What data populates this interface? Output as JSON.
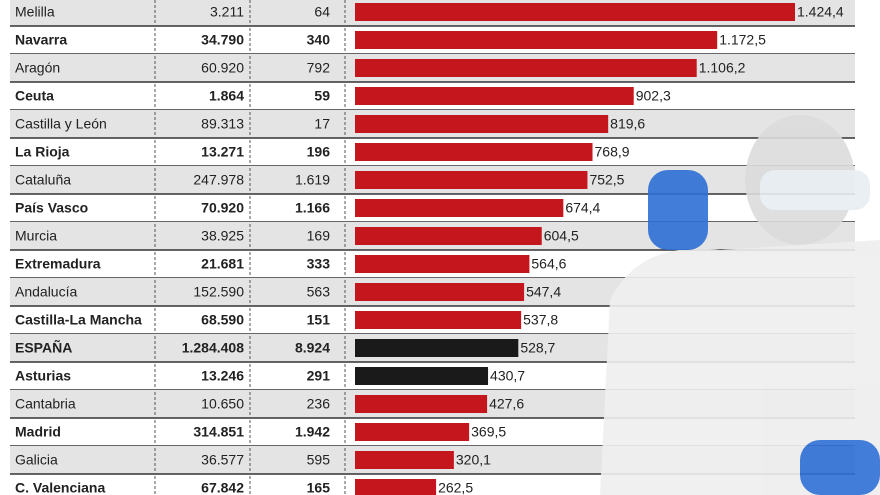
{
  "chart_data": {
    "type": "bar",
    "categories": [
      "Melilla",
      "Navarra",
      "Aragón",
      "Ceuta",
      "Castilla y León",
      "La Rioja",
      "Cataluña",
      "País Vasco",
      "Murcia",
      "Extremadura",
      "Andalucía",
      "Castilla-La Mancha",
      "ESPAÑA",
      "Asturias",
      "Cantabria",
      "Madrid",
      "Galicia",
      "C. Valenciana"
    ],
    "cases": [
      "3.211",
      "34.790",
      "60.920",
      "1.864",
      "89.313",
      "13.271",
      "247.978",
      "70.920",
      "38.925",
      "21.681",
      "152.590",
      "68.590",
      "1.284.408",
      "13.246",
      "10.650",
      "314.851",
      "36.577",
      "67.842"
    ],
    "deaths": [
      "64",
      "340",
      "792",
      "59",
      "17",
      "196",
      "1.619",
      "1.166",
      "169",
      "333",
      "563",
      "151",
      "8.924",
      "291",
      "236",
      "1.942",
      "595",
      "165"
    ],
    "values": [
      1424.4,
      1172.5,
      1106.2,
      902.3,
      819.6,
      768.9,
      752.5,
      674.4,
      604.5,
      564.6,
      547.4,
      537.8,
      528.7,
      430.7,
      427.6,
      369.5,
      320.1,
      262.5
    ],
    "value_labels": [
      "1.424,4",
      "1.172,5",
      "1.106,2",
      "902,3",
      "819,6",
      "768,9",
      "752,5",
      "674,4",
      "604,5",
      "564,6",
      "547,4",
      "537,8",
      "528,7",
      "430,7",
      "427,6",
      "369,5",
      "320,1",
      "262,5"
    ],
    "colors": [
      "#c4161c",
      "#c4161c",
      "#c4161c",
      "#c4161c",
      "#c4161c",
      "#c4161c",
      "#c4161c",
      "#c4161c",
      "#c4161c",
      "#c4161c",
      "#c4161c",
      "#c4161c",
      "#1a1a1a",
      "#1a1a1a",
      "#c4161c",
      "#c4161c",
      "#c4161c",
      "#c4161c"
    ]
  }
}
